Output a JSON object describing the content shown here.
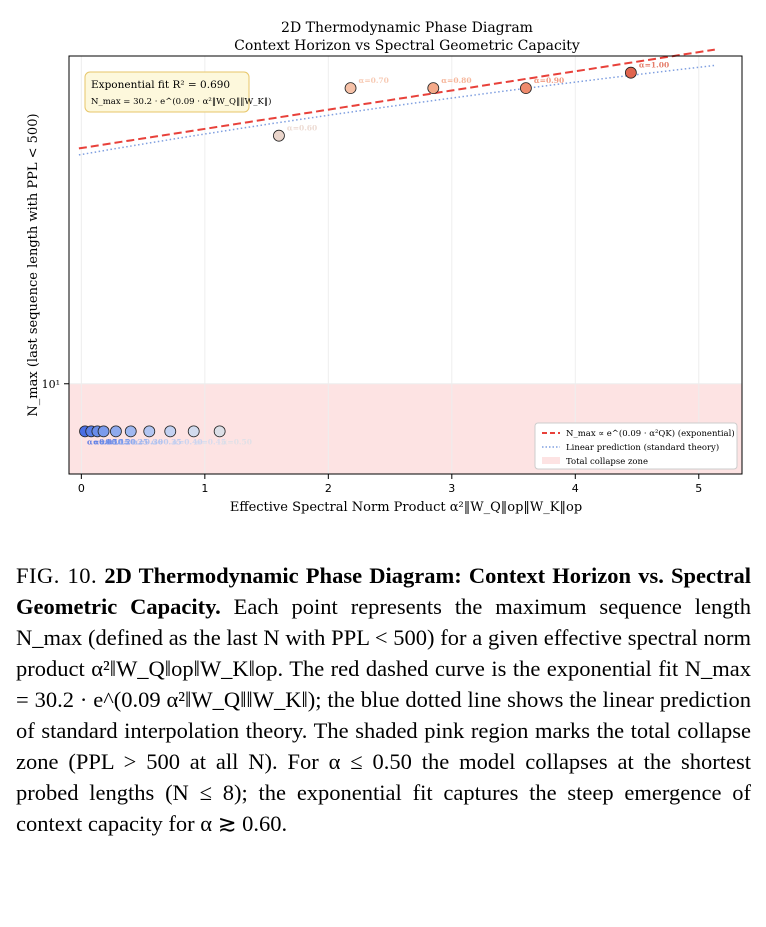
{
  "chart_data": {
    "type": "scatter",
    "title": "2D Thermodynamic Phase Diagram",
    "subtitle": "Context Horizon vs Spectral Geometric Capacity",
    "xlabel": "Effective Spectral Norm Product α²‖W_Q‖op‖W_K‖op",
    "ylabel": "N_max (last sequence length with PPL < 500)",
    "xlim": [
      -0.1,
      5.35
    ],
    "ylim": [
      6.55,
      46.5
    ],
    "y_scale": "log",
    "x_ticks": [
      0,
      1,
      2,
      3,
      4,
      5
    ],
    "y_tick_label": "10¹",
    "grid": true,
    "legend_position": "lower-right",
    "fit_annotation": {
      "line1": "Exponential fit R² = 0.690",
      "line2": "N_max = 30.2 · e^(0.09 · α²‖W_Q‖‖W_K‖)"
    },
    "collapse_zone": {
      "y_max": 10,
      "label": "Total collapse zone",
      "color": "#fde3e3"
    },
    "exponential_fit": {
      "label": "N_max ∝ e^(0.09 · α²QK) (exponential)",
      "a": 30.2,
      "b": 0.09,
      "color": "#e8413a"
    },
    "linear_prediction": {
      "label": "Linear prediction (standard theory)",
      "y0": 29.3,
      "slope": 2.96,
      "color": "#7f9fe0"
    },
    "points": [
      {
        "x": 0.03,
        "y": 8,
        "label": "α=0.05",
        "color": "#4a6fe3"
      },
      {
        "x": 0.08,
        "y": 8,
        "label": "α=0.10",
        "color": "#5a7fe6"
      },
      {
        "x": 0.13,
        "y": 8,
        "label": "α=0.15",
        "color": "#6a8de9"
      },
      {
        "x": 0.18,
        "y": 8,
        "label": "α=0.20",
        "color": "#7b9bec"
      },
      {
        "x": 0.28,
        "y": 8,
        "label": "α=0.25",
        "color": "#8eaaee"
      },
      {
        "x": 0.4,
        "y": 8,
        "label": "α=0.30",
        "color": "#a0b8f0"
      },
      {
        "x": 0.55,
        "y": 8,
        "label": "α=0.35",
        "color": "#b2c5f1"
      },
      {
        "x": 0.72,
        "y": 8,
        "label": "α=0.40",
        "color": "#c3d1f1"
      },
      {
        "x": 0.91,
        "y": 8,
        "label": "α=0.45",
        "color": "#d2dbee"
      },
      {
        "x": 1.12,
        "y": 8,
        "label": "α=0.50",
        "color": "#dcdfe6"
      },
      {
        "x": 1.6,
        "y": 32,
        "label": "α=0.60",
        "color": "#ead5cb"
      },
      {
        "x": 2.18,
        "y": 40,
        "label": "α=0.70",
        "color": "#f6c1a7"
      },
      {
        "x": 2.85,
        "y": 40,
        "label": "α=0.80",
        "color": "#f4a989"
      },
      {
        "x": 3.6,
        "y": 40,
        "label": "α=0.90",
        "color": "#ee8a6c"
      },
      {
        "x": 4.45,
        "y": 43,
        "label": "α=1.00",
        "color": "#e0654f"
      }
    ]
  },
  "caption": {
    "label": "FIG. 10.",
    "title": "2D Thermodynamic Phase Diagram: Context Horizon vs. Spectral Geometric Capacity.",
    "body": "Each point represents the maximum sequence length N_max (defined as the last N with PPL < 500) for a given effective spectral norm product α²‖W_Q‖op‖W_K‖op. The red dashed curve is the exponential fit N_max = 30.2 · e^(0.09 α²‖W_Q‖‖W_K‖); the blue dotted line shows the linear prediction of standard interpolation theory. The shaded pink region marks the total collapse zone (PPL > 500 at all N). For α ≤ 0.50 the model collapses at the shortest probed lengths (N ≤ 8); the exponential fit captures the steep emergence of context capacity for α ≳ 0.60."
  }
}
